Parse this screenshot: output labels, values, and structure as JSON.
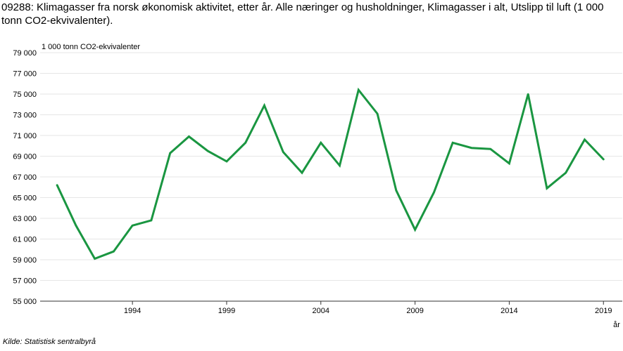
{
  "chart_data": {
    "type": "line",
    "title": "09288: Klimagasser fra norsk økonomisk aktivitet, etter år. Alle næringer og husholdninger, Klimagasser i alt, Utslipp til luft (1 000 tonn CO2-ekvivalenter).",
    "ylabel": "1 000 tonn CO2-ekvivalenter",
    "xlabel": "år",
    "source": "Kilde:  Statistisk sentralbyrå",
    "ylim": [
      55000,
      79000
    ],
    "xlim": [
      1990,
      2019
    ],
    "grid": true,
    "line_color": "#1a9641",
    "y_ticks": [
      {
        "value": 55000,
        "label": "55 000"
      },
      {
        "value": 57000,
        "label": "57 000"
      },
      {
        "value": 59000,
        "label": "59 000"
      },
      {
        "value": 61000,
        "label": "61 000"
      },
      {
        "value": 63000,
        "label": "63 000"
      },
      {
        "value": 65000,
        "label": "65 000"
      },
      {
        "value": 67000,
        "label": "67 000"
      },
      {
        "value": 69000,
        "label": "69 000"
      },
      {
        "value": 71000,
        "label": "71 000"
      },
      {
        "value": 73000,
        "label": "73 000"
      },
      {
        "value": 75000,
        "label": "75 000"
      },
      {
        "value": 77000,
        "label": "77 000"
      },
      {
        "value": 79000,
        "label": "79 000"
      }
    ],
    "x_ticks": [
      {
        "value": 1994,
        "label": "1994"
      },
      {
        "value": 1999,
        "label": "1999"
      },
      {
        "value": 2004,
        "label": "2004"
      },
      {
        "value": 2009,
        "label": "2009"
      },
      {
        "value": 2014,
        "label": "2014"
      },
      {
        "value": 2019,
        "label": "2019"
      }
    ],
    "x": [
      1990,
      1991,
      1992,
      1993,
      1994,
      1995,
      1996,
      1997,
      1998,
      1999,
      2000,
      2001,
      2002,
      2003,
      2004,
      2005,
      2006,
      2007,
      2008,
      2009,
      2010,
      2011,
      2012,
      2013,
      2014,
      2015,
      2016,
      2017,
      2018,
      2019
    ],
    "series": [
      {
        "values": [
          66200,
          62300,
          59100,
          59800,
          62300,
          62800,
          69300,
          70900,
          69500,
          68500,
          70300,
          73900,
          69400,
          67400,
          70300,
          68100,
          75400,
          73100,
          65700,
          61900,
          65500,
          70300,
          69800,
          69700,
          68300,
          75000,
          65900,
          67400,
          70600,
          68700
        ]
      }
    ]
  }
}
